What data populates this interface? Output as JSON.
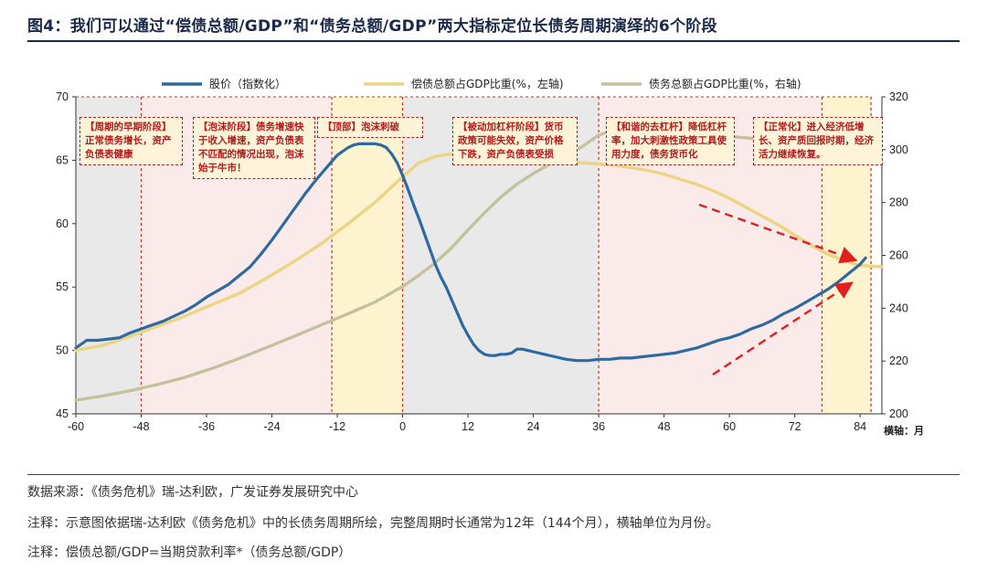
{
  "figure": {
    "title": "图4：我们可以通过“偿债总额/GDP”和“债务总额/GDP”两大指标定位长债务周期演绎的6个阶段"
  },
  "chart_data": {
    "type": "line",
    "x_ticks": [
      "-60",
      "-48",
      "-36",
      "-24",
      "-12",
      "0",
      "12",
      "24",
      "36",
      "48",
      "60",
      "72",
      "84"
    ],
    "x_unit_label": "横轴：月",
    "xlim": [
      -60,
      88
    ],
    "left_axis": {
      "ticks": [
        "45",
        "50",
        "55",
        "60",
        "65",
        "70"
      ],
      "ylim": [
        45,
        70
      ]
    },
    "right_axis": {
      "ticks": [
        "200",
        "220",
        "240",
        "260",
        "280",
        "300",
        "320"
      ],
      "ylim": [
        200,
        320
      ]
    },
    "legend": [
      {
        "label": "股价（指数化）",
        "color": "#2e6aa0"
      },
      {
        "label": "偿债总额占GDP比重(%，左轴)",
        "color": "#ecd582"
      },
      {
        "label": "债务总额占GDP比重(%，右轴)",
        "color": "#c4c19e"
      }
    ],
    "series": [
      {
        "name": "股价（指数化）",
        "axis": "left",
        "color": "#2e6aa0",
        "x": [
          -60,
          -58,
          -56,
          -54,
          -52,
          -50,
          -48,
          -46,
          -44,
          -42,
          -40,
          -38,
          -36,
          -34,
          -32,
          -30,
          -28,
          -26,
          -24,
          -22,
          -20,
          -18,
          -16,
          -14,
          -12,
          -10,
          -9,
          -8,
          -7,
          -6,
          -5,
          -4,
          -3,
          -2,
          -1,
          0,
          1,
          2,
          3,
          4,
          5,
          6,
          7,
          8,
          9,
          10,
          11,
          12,
          13,
          14,
          15,
          16,
          17,
          18,
          19,
          20,
          21,
          22,
          23,
          24,
          26,
          28,
          30,
          32,
          34,
          36,
          38,
          40,
          42,
          44,
          46,
          48,
          50,
          52,
          54,
          56,
          58,
          60,
          62,
          64,
          66,
          68,
          70,
          72,
          74,
          76,
          78,
          80,
          82,
          84,
          85
        ],
        "y": [
          50.2,
          50.8,
          50.8,
          50.9,
          51.0,
          51.4,
          51.7,
          52.0,
          52.3,
          52.7,
          53.1,
          53.6,
          54.2,
          54.7,
          55.2,
          55.9,
          56.6,
          57.6,
          58.7,
          59.9,
          61.1,
          62.3,
          63.4,
          64.4,
          65.4,
          66.0,
          66.2,
          66.3,
          66.3,
          66.3,
          66.3,
          66.2,
          66.0,
          65.5,
          64.8,
          63.8,
          62.7,
          61.5,
          60.4,
          59.2,
          58.0,
          56.8,
          55.8,
          55.0,
          54.0,
          53.0,
          52.0,
          51.2,
          50.5,
          50.0,
          49.7,
          49.6,
          49.6,
          49.7,
          49.7,
          49.8,
          50.1,
          50.1,
          50.0,
          49.9,
          49.7,
          49.5,
          49.3,
          49.2,
          49.2,
          49.3,
          49.3,
          49.4,
          49.4,
          49.5,
          49.6,
          49.7,
          49.8,
          50.0,
          50.2,
          50.5,
          50.8,
          51.0,
          51.3,
          51.7,
          52.0,
          52.4,
          52.9,
          53.3,
          53.8,
          54.3,
          54.8,
          55.4,
          56.1,
          56.8,
          57.3
        ]
      },
      {
        "name": "偿债总额占GDP比重(%，左轴)",
        "axis": "left",
        "color": "#ecd582",
        "x": [
          -60,
          -55,
          -50,
          -45,
          -40,
          -35,
          -30,
          -25,
          -20,
          -15,
          -10,
          -5,
          0,
          3,
          6,
          9,
          12,
          15,
          18,
          21,
          24,
          27,
          30,
          33,
          36,
          39,
          42,
          45,
          48,
          51,
          54,
          57,
          60,
          63,
          66,
          69,
          72,
          75,
          78,
          81,
          84,
          88
        ],
        "y": [
          50.0,
          50.4,
          51.1,
          51.9,
          52.7,
          53.6,
          54.5,
          55.7,
          57.0,
          58.4,
          60.0,
          61.7,
          63.7,
          64.8,
          65.3,
          65.5,
          65.6,
          65.6,
          65.6,
          65.4,
          65.3,
          65.1,
          64.9,
          64.8,
          64.7,
          64.6,
          64.4,
          64.2,
          63.9,
          63.5,
          63.1,
          62.6,
          62.0,
          61.3,
          60.6,
          59.9,
          59.1,
          58.3,
          57.6,
          57.1,
          56.7,
          56.6
        ]
      },
      {
        "name": "债务总额占GDP比重(%，右轴)",
        "axis": "right",
        "color": "#c4c19e",
        "x": [
          -60,
          -55,
          -50,
          -45,
          -40,
          -35,
          -30,
          -25,
          -20,
          -15,
          -10,
          -5,
          0,
          3,
          6,
          9,
          12,
          15,
          18,
          21,
          24,
          27,
          30,
          33,
          36,
          39,
          42,
          45,
          48,
          51,
          54,
          57,
          60,
          63,
          66,
          69,
          72,
          75,
          78,
          81,
          84,
          88
        ],
        "y": [
          205.2,
          206.8,
          208.8,
          211.1,
          213.8,
          217.2,
          221.0,
          225.1,
          229.3,
          233.6,
          237.9,
          242.4,
          248.2,
          252.5,
          257.2,
          262.9,
          269.6,
          276.0,
          282.0,
          287.0,
          291.0,
          294.5,
          297.6,
          301.2,
          305.5,
          307.6,
          308.1,
          307.6,
          306.6,
          305.8,
          305.2,
          305.0,
          305.0,
          304.5,
          303.8,
          302.6,
          301.1,
          299.2,
          297.5,
          296.3,
          295.5,
          295.0
        ]
      }
    ],
    "phases": [
      {
        "text": "【周期的早期阶段】正常债务增长，资产负债表健康",
        "x_start": -60,
        "x_end": -48,
        "fill": "#e9e9e9"
      },
      {
        "text": "【泡沫阶段】债务增速快于收入增速，资产负债表不匹配的情况出现，泡沫始于牛市！",
        "x_start": -48,
        "x_end": -13,
        "fill": "#fbeaea"
      },
      {
        "text": "【顶部】泡沫刺破",
        "x_start": -13,
        "x_end": 0,
        "fill": "#fdf3cf"
      },
      {
        "text": "【被动加杠杆阶段】货币政策可能失效，资产价格下跌，资产负债表受损",
        "x_start": 0,
        "x_end": 36,
        "fill": "#e9e9e9"
      },
      {
        "text": "【和谐的去杠杆】降低杠杆率，加大刺激性政策工具使用力度，债务货币化",
        "x_start": 36,
        "x_end": 77,
        "fill": "#fbeaea"
      },
      {
        "text": "【正常化】进入经济低增长、资产质回报时期，经济活力继续恢复。",
        "x_start": 77,
        "x_end": 86,
        "fill": "#fdf3cf"
      }
    ]
  },
  "notes": [
    "数据来源：《债务危机》瑞-达利欧，广发证券发展研究中心",
    "注释：示意图依据瑞-达利欧《债务危机》中的长债务周期所绘，完整周期时长通常为12年（144个月），横轴单位为月份。",
    "注释：偿债总额/GDP=当期贷款利率*（债务总额/GDP）"
  ]
}
